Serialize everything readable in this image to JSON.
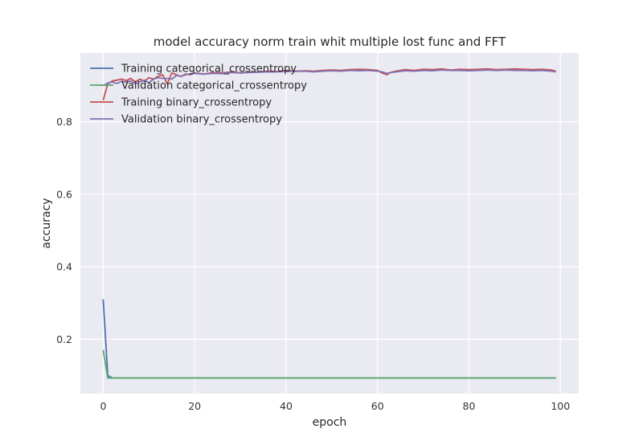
{
  "chart_data": {
    "type": "line",
    "title": "model accuracy norm train whit multiple lost func and FFT",
    "xlabel": "epoch",
    "ylabel": "accuracy",
    "xlim": [
      -5,
      104
    ],
    "ylim": [
      0.05,
      0.99
    ],
    "xticks": [
      0,
      20,
      40,
      60,
      80,
      100
    ],
    "yticks": [
      0.2,
      0.4,
      0.6,
      0.8
    ],
    "grid": true,
    "legend_position": "upper-left",
    "background_color": "#eaeaf2",
    "series": [
      {
        "name": "Training categorical_crossentropy",
        "color": "#4c72b0",
        "x": [
          0,
          1,
          2,
          99
        ],
        "y": [
          0.31,
          0.1,
          0.093,
          0.093
        ]
      },
      {
        "name": "Validation categorical_crossentropy",
        "color": "#55a868",
        "x": [
          0,
          1,
          2,
          99
        ],
        "y": [
          0.17,
          0.093,
          0.093,
          0.093
        ]
      },
      {
        "name": "Training binary_crossentropy",
        "color": "#c44e52",
        "x": [
          0,
          1,
          2,
          3,
          4,
          5,
          6,
          7,
          8,
          9,
          10,
          11,
          12,
          13,
          14,
          15,
          16,
          17,
          18,
          19,
          20,
          22,
          24,
          26,
          28,
          30,
          32,
          34,
          36,
          38,
          40,
          42,
          44,
          46,
          48,
          50,
          52,
          54,
          56,
          58,
          60,
          61,
          62,
          63,
          64,
          66,
          68,
          70,
          72,
          74,
          76,
          78,
          80,
          82,
          84,
          86,
          88,
          90,
          92,
          94,
          96,
          98,
          99
        ],
        "y": [
          0.86,
          0.905,
          0.913,
          0.915,
          0.918,
          0.914,
          0.92,
          0.91,
          0.918,
          0.912,
          0.922,
          0.918,
          0.926,
          0.93,
          0.905,
          0.935,
          0.93,
          0.925,
          0.932,
          0.93,
          0.935,
          0.932,
          0.936,
          0.935,
          0.938,
          0.935,
          0.937,
          0.938,
          0.94,
          0.939,
          0.942,
          0.94,
          0.941,
          0.94,
          0.942,
          0.943,
          0.942,
          0.944,
          0.945,
          0.944,
          0.942,
          0.935,
          0.93,
          0.937,
          0.94,
          0.944,
          0.942,
          0.945,
          0.944,
          0.946,
          0.943,
          0.945,
          0.944,
          0.945,
          0.946,
          0.944,
          0.945,
          0.946,
          0.945,
          0.944,
          0.945,
          0.943,
          0.94
        ]
      },
      {
        "name": "Validation binary_crossentropy",
        "color": "#8172b2",
        "x": [
          0,
          1,
          2,
          3,
          4,
          5,
          6,
          7,
          8,
          9,
          10,
          11,
          12,
          13,
          14,
          15,
          16,
          17,
          18,
          19,
          20,
          22,
          24,
          26,
          28,
          30,
          32,
          34,
          36,
          38,
          40,
          42,
          44,
          46,
          48,
          50,
          52,
          54,
          56,
          58,
          60,
          61,
          62,
          63,
          64,
          66,
          68,
          70,
          72,
          74,
          76,
          78,
          80,
          82,
          84,
          86,
          88,
          90,
          92,
          94,
          96,
          98,
          99
        ],
        "y": [
          0.9,
          0.907,
          0.91,
          0.906,
          0.912,
          0.909,
          0.913,
          0.905,
          0.91,
          0.915,
          0.908,
          0.918,
          0.922,
          0.92,
          0.92,
          0.918,
          0.928,
          0.926,
          0.93,
          0.932,
          0.934,
          0.932,
          0.934,
          0.933,
          0.936,
          0.935,
          0.936,
          0.937,
          0.938,
          0.938,
          0.94,
          0.939,
          0.94,
          0.938,
          0.94,
          0.941,
          0.94,
          0.942,
          0.941,
          0.942,
          0.94,
          0.938,
          0.934,
          0.936,
          0.938,
          0.941,
          0.94,
          0.942,
          0.941,
          0.943,
          0.942,
          0.942,
          0.941,
          0.942,
          0.943,
          0.942,
          0.943,
          0.942,
          0.942,
          0.941,
          0.942,
          0.94,
          0.938
        ]
      }
    ]
  }
}
